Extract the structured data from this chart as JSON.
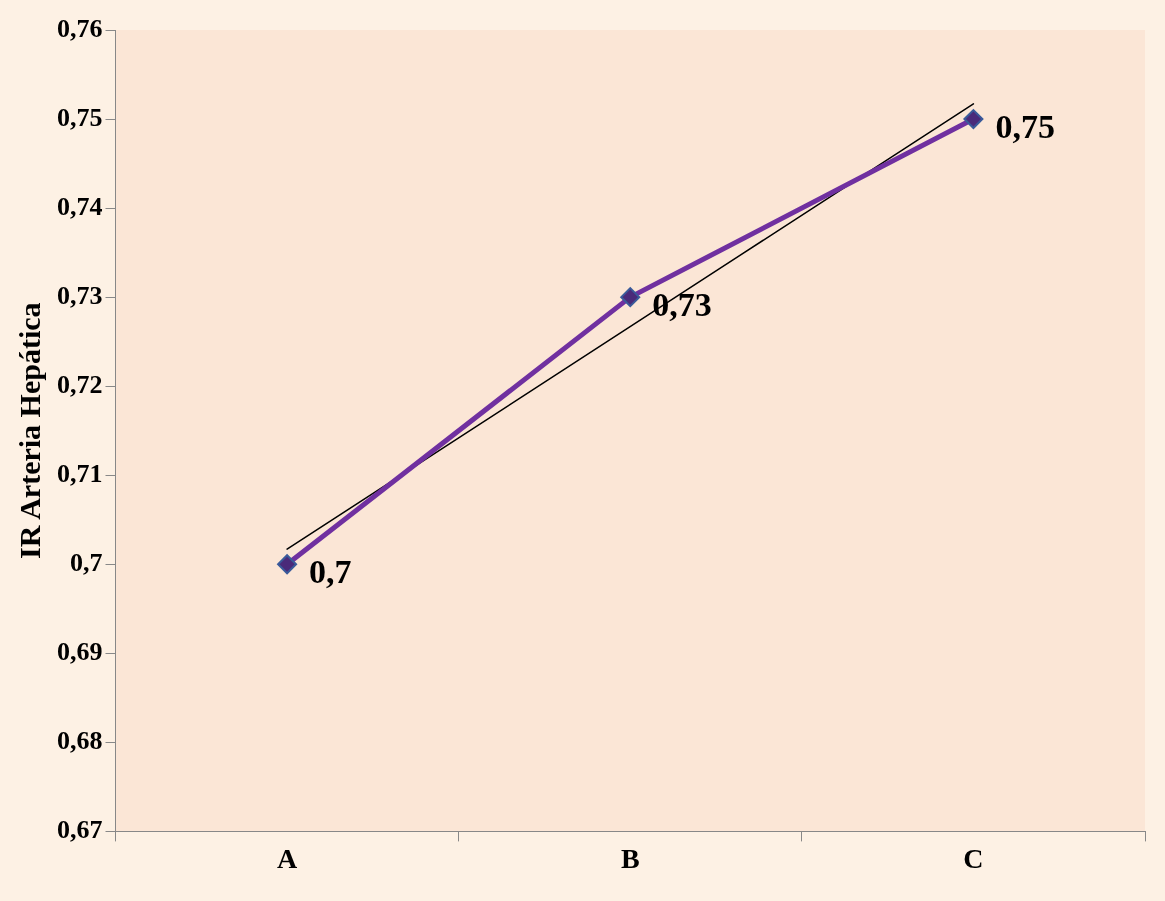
{
  "chart_data": {
    "type": "line",
    "ylabel": "IR Arteria Hepática",
    "categories": [
      "A",
      "B",
      "C"
    ],
    "legend": false,
    "series": [
      {
        "color": "#7030a0",
        "values": [
          0.7,
          0.73,
          0.75
        ],
        "marker": "diamond",
        "value_labels": [
          "0,7",
          "0,73",
          "0,75"
        ]
      },
      {
        "type": "line",
        "color": "#000000",
        "x": [
          "A",
          "C"
        ],
        "values": [
          0.7017,
          0.7517
        ],
        "marker": "none"
      }
    ],
    "ylim": [
      0.67,
      0.76
    ],
    "yticks": [
      {
        "value": 0.67,
        "label": "0,67"
      },
      {
        "value": 0.68,
        "label": "0,68"
      },
      {
        "value": 0.69,
        "label": "0,69"
      },
      {
        "value": 0.7,
        "label": "0,7"
      },
      {
        "value": 0.71,
        "label": "0,71"
      },
      {
        "value": 0.72,
        "label": "0,72"
      },
      {
        "value": 0.73,
        "label": "0,73"
      },
      {
        "value": 0.74,
        "label": "0,74"
      },
      {
        "value": 0.75,
        "label": "0,75"
      },
      {
        "value": 0.76,
        "label": "0,76"
      }
    ]
  }
}
